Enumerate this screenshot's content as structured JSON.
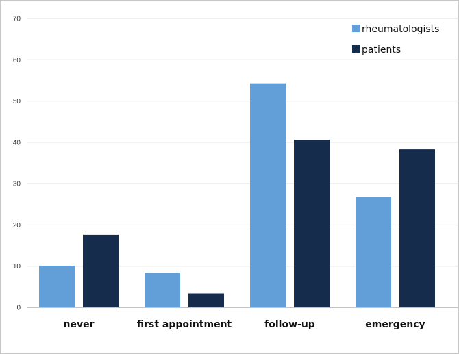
{
  "chart_data": {
    "type": "bar",
    "title": "",
    "xlabel": "",
    "ylabel": "",
    "categories": [
      "never",
      "first appointment",
      "follow-up",
      "emergency"
    ],
    "series": [
      {
        "name": "rheumatologists",
        "color": "#629fd9",
        "values": [
          10.1,
          8.4,
          54.3,
          26.8
        ]
      },
      {
        "name": "patients",
        "color": "#152c4d",
        "values": [
          17.6,
          3.4,
          40.6,
          38.3
        ]
      }
    ],
    "ylim": [
      0,
      70
    ],
    "yticks": [
      0,
      10,
      20,
      30,
      40,
      50,
      60,
      70
    ],
    "grid": true,
    "legend_position": "top-right"
  }
}
